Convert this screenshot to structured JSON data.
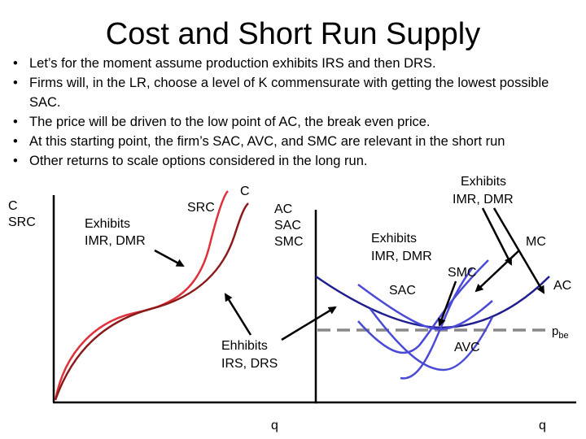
{
  "slide": {
    "title": "Cost and Short Run Supply",
    "bullets": [
      "Let’s for the moment assume production exhibits IRS and then DRS.",
      "Firms will, in the LR, choose a level of K commensurate with getting the lowest possible SAC.",
      "The price will be driven to the low point of AC, the break even price.",
      "At this starting point, the firm’s SAC, AVC, and SMC are relevant in the short run",
      "Other returns to scale options considered in the long run."
    ],
    "bullet_glyph": "•"
  },
  "left_diagram": {
    "y_axis_label_line1": "C",
    "y_axis_label_line2": "SRC",
    "x_axis_label": "q",
    "curve_label_src": "SRC",
    "curve_label_c": "C",
    "annotation_imr_line1": "Exhibits",
    "annotation_imr_line2": "IMR, DMR",
    "annotation_irs_line1": "Ehhibits",
    "annotation_irs_line2": "IRS, DRS",
    "ac_labels": [
      "AC",
      "SAC",
      "SMC"
    ],
    "colors": {
      "src_curve": "#e0303a",
      "c_curve": "#8b1a1a"
    }
  },
  "right_diagram": {
    "x_axis_label": "q",
    "label_exhibits_top_line1": "Exhibits",
    "label_exhibits_top_line2": "IMR, DMR",
    "label_exhibits_mid_line1": "Exhibits",
    "label_exhibits_mid_line2": "IMR, DMR",
    "label_mc": "MC",
    "label_smc": "SMC",
    "label_sac": "SAC",
    "label_ac": "AC",
    "label_avc": "AVC",
    "label_pbe": "p",
    "label_pbe_sub": "be",
    "colors": {
      "ac_curve": "#1f1f8f",
      "short_run_curves": "#4a4ad6",
      "pbe_line": "#888888"
    }
  }
}
